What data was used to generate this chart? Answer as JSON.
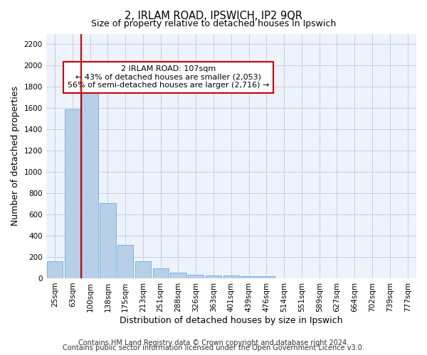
{
  "title_line1": "2, IRLAM ROAD, IPSWICH, IP2 9QR",
  "title_line2": "Size of property relative to detached houses in Ipswich",
  "xlabel": "Distribution of detached houses by size in Ipswich",
  "ylabel": "Number of detached properties",
  "categories": [
    "25sqm",
    "63sqm",
    "100sqm",
    "138sqm",
    "175sqm",
    "213sqm",
    "251sqm",
    "288sqm",
    "326sqm",
    "363sqm",
    "401sqm",
    "439sqm",
    "476sqm",
    "514sqm",
    "551sqm",
    "589sqm",
    "627sqm",
    "664sqm",
    "702sqm",
    "739sqm",
    "777sqm"
  ],
  "values": [
    160,
    1590,
    1760,
    710,
    315,
    160,
    90,
    55,
    35,
    25,
    25,
    20,
    20,
    0,
    0,
    0,
    0,
    0,
    0,
    0,
    0
  ],
  "bar_color": "#b8cfe8",
  "bar_edgecolor": "#6aaed6",
  "background_color": "#eef2fb",
  "grid_color": "#c5cde6",
  "vline_x_index": 1.5,
  "vline_color": "#cc0000",
  "annotation_text": "2 IRLAM ROAD: 107sqm\n← 43% of detached houses are smaller (2,053)\n56% of semi-detached houses are larger (2,716) →",
  "annotation_box_color": "#ffffff",
  "annotation_box_edgecolor": "#cc0000",
  "ylim": [
    0,
    2300
  ],
  "yticks": [
    0,
    200,
    400,
    600,
    800,
    1000,
    1200,
    1400,
    1600,
    1800,
    2000,
    2200
  ],
  "footer_line1": "Contains HM Land Registry data © Crown copyright and database right 2024.",
  "footer_line2": "Contains public sector information licensed under the Open Government Licence v3.0.",
  "title_fontsize": 10.5,
  "subtitle_fontsize": 9,
  "axis_label_fontsize": 9,
  "tick_fontsize": 7.5,
  "annotation_fontsize": 8,
  "footer_fontsize": 7
}
